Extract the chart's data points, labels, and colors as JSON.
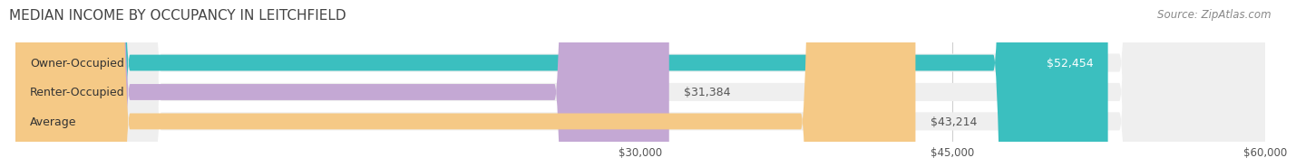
{
  "title": "MEDIAN INCOME BY OCCUPANCY IN LEITCHFIELD",
  "source": "Source: ZipAtlas.com",
  "categories": [
    "Owner-Occupied",
    "Renter-Occupied",
    "Average"
  ],
  "values": [
    52454,
    31384,
    43214
  ],
  "bar_colors": [
    "#3bbfbf",
    "#c4a8d4",
    "#f5c986"
  ],
  "label_color": [
    "#ffffff",
    "#555555",
    "#555555"
  ],
  "x_min": 0,
  "x_max": 60000,
  "x_ticks": [
    30000,
    45000,
    60000
  ],
  "x_tick_labels": [
    "$30,000",
    "$45,000",
    "$60,000"
  ],
  "title_fontsize": 11,
  "source_fontsize": 8.5,
  "bar_label_fontsize": 9,
  "cat_label_fontsize": 9,
  "background_color": "#ffffff",
  "track_color": "#efefef",
  "grid_color": "#d0d0d0"
}
